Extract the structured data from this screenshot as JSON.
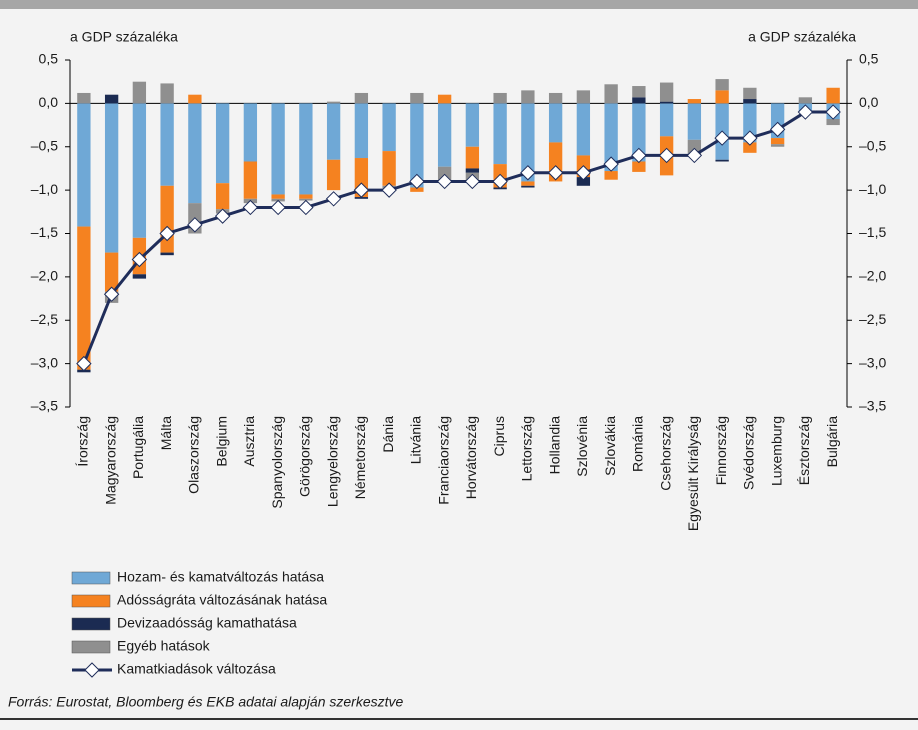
{
  "chart_data": {
    "type": "bar",
    "stacked": true,
    "y_label_left": "a GDP százaléka",
    "y_label_right": "a GDP százaléka",
    "source": "Forrás: Eurostat, Bloomberg és EKB adatai alapján szerkesztve",
    "categories": [
      "Írország",
      "Magyarország",
      "Portugália",
      "Málta",
      "Olaszország",
      "Belgium",
      "Ausztria",
      "Spanyolország",
      "Görögország",
      "Lengyelország",
      "Németország",
      "Dánia",
      "Litvánia",
      "Franciaország",
      "Horvátország",
      "Ciprus",
      "Lettország",
      "Hollandia",
      "Szlovénia",
      "Szlovákia",
      "Románia",
      "Csehország",
      "Egyesült Királyság",
      "Finnország",
      "Svédország",
      "Luxemburg",
      "Észtország",
      "Bulgária"
    ],
    "series": [
      {
        "name": "Hozam- és kamatváltozás hatása",
        "color": "#6fa8d6",
        "values": [
          -1.42,
          -1.72,
          -1.55,
          -0.95,
          -1.15,
          -0.92,
          -0.67,
          -1.05,
          -1.05,
          -0.65,
          -0.63,
          -0.55,
          -0.97,
          -0.73,
          -0.5,
          -0.7,
          -0.9,
          -0.45,
          -0.6,
          -0.78,
          -0.67,
          -0.38,
          -0.42,
          -0.65,
          -0.45,
          -0.4,
          -0.1,
          -0.18
        ]
      },
      {
        "name": "Adósságráta változásának hatása",
        "color": "#f58220",
        "values": [
          -1.65,
          -0.45,
          -0.42,
          -0.77,
          0.1,
          -0.3,
          -0.43,
          -0.05,
          -0.05,
          -0.35,
          -0.45,
          -0.4,
          -0.05,
          0.1,
          -0.25,
          -0.27,
          -0.05,
          -0.45,
          -0.25,
          -0.1,
          -0.12,
          -0.45,
          0.05,
          0.15,
          -0.12,
          -0.07,
          0,
          0.18
        ]
      },
      {
        "name": "Devizaadósság kamathatása",
        "color": "#1b2b52",
        "values": [
          -0.03,
          0.1,
          -0.05,
          -0.03,
          0,
          0,
          0,
          0,
          0,
          0,
          -0.02,
          0,
          0,
          0,
          -0.05,
          -0.02,
          -0.02,
          0,
          -0.1,
          0,
          0.07,
          0.02,
          0,
          -0.02,
          0.05,
          0,
          0,
          0
        ]
      },
      {
        "name": "Egyéb hatások",
        "color": "#8f8f8f",
        "values": [
          0.12,
          -0.13,
          0.25,
          0.23,
          -0.35,
          -0.05,
          -0.05,
          -0.03,
          -0.02,
          0.02,
          0.12,
          -0.03,
          0.12,
          -0.17,
          -0.1,
          0.12,
          0.15,
          0.12,
          0.15,
          0.22,
          0.13,
          0.22,
          -0.18,
          0.13,
          0.13,
          -0.03,
          0.07,
          -0.07
        ]
      },
      {
        "name": "Kamatkiadások változása",
        "type": "line",
        "color": "#1f2d5a",
        "values": [
          -3.0,
          -2.2,
          -1.8,
          -1.5,
          -1.4,
          -1.3,
          -1.2,
          -1.2,
          -1.2,
          -1.1,
          -1.0,
          -1.0,
          -0.9,
          -0.9,
          -0.9,
          -0.9,
          -0.8,
          -0.8,
          -0.8,
          -0.7,
          -0.6,
          -0.6,
          -0.6,
          -0.4,
          -0.4,
          -0.3,
          -0.1,
          -0.1
        ]
      }
    ],
    "ylim": [
      -3.5,
      0.5
    ],
    "yticks": [
      {
        "value": 0.5,
        "label": "0,5"
      },
      {
        "value": 0,
        "label": "0,0"
      },
      {
        "value": -0.5,
        "label": "–0,5"
      },
      {
        "value": -1,
        "label": "–1,0"
      },
      {
        "value": -1.5,
        "label": "–1,5"
      },
      {
        "value": -2,
        "label": "–2,0"
      },
      {
        "value": -2.5,
        "label": "–2,5"
      },
      {
        "value": -3,
        "label": "–3,0"
      },
      {
        "value": -3.5,
        "label": "–3,5"
      }
    ]
  }
}
